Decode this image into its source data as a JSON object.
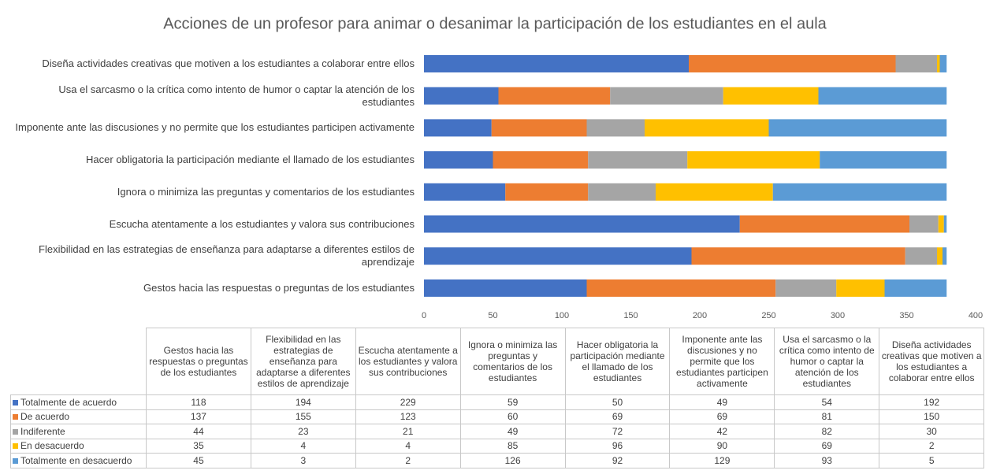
{
  "chart_data": {
    "type": "bar",
    "orientation": "horizontal",
    "stacked": true,
    "title": "Acciones de un profesor para animar o desanimar la participación de los estudiantes en el aula",
    "categories": [
      "Gestos hacia las respuestas o preguntas de los estudiantes",
      "Flexibilidad en las estrategias de enseñanza para adaptarse a diferentes estilos de aprendizaje",
      "Escucha atentamente a los estudiantes y valora sus contribuciones",
      "Ignora o minimiza las preguntas y comentarios de los estudiantes",
      "Hacer obligatoria la participación mediante el llamado de los estudiantes",
      "Imponente ante las discusiones y no permite que los estudiantes participen activamente",
      "Usa el sarcasmo o la crítica como intento de humor o captar la atención de los estudiantes",
      "Diseña actividades creativas que motiven a los estudiantes a colaborar entre ellos"
    ],
    "series": [
      {
        "name": "Totalmente  de acuerdo",
        "color": "#4472c4",
        "values": [
          118,
          194,
          229,
          59,
          50,
          49,
          54,
          192
        ]
      },
      {
        "name": "De acuerdo",
        "color": "#ed7d31",
        "values": [
          137,
          155,
          123,
          60,
          69,
          69,
          81,
          150
        ]
      },
      {
        "name": "Indiferente",
        "color": "#a5a5a5",
        "values": [
          44,
          23,
          21,
          49,
          72,
          42,
          82,
          30
        ]
      },
      {
        "name": "En desacuerdo",
        "color": "#ffc000",
        "values": [
          35,
          4,
          4,
          85,
          96,
          90,
          69,
          2
        ]
      },
      {
        "name": "Totalmente en desacuerdo",
        "color": "#5b9bd5",
        "values": [
          45,
          3,
          2,
          126,
          92,
          129,
          93,
          5
        ]
      }
    ],
    "xlim": [
      0,
      400
    ],
    "xticks": [
      0,
      50,
      100,
      150,
      200,
      250,
      300,
      350,
      400
    ],
    "grid": false,
    "data_table": true
  }
}
